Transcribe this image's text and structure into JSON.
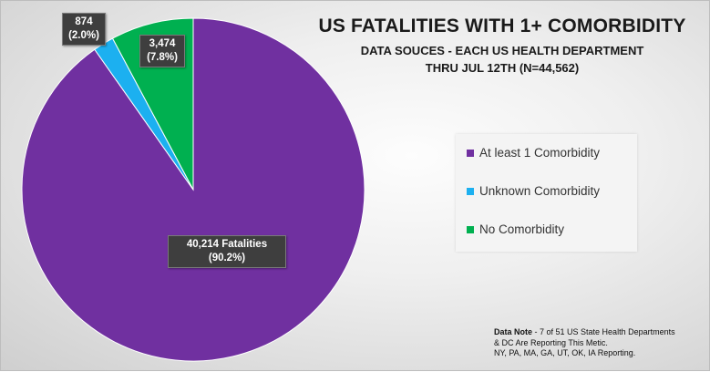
{
  "chart_data": {
    "type": "pie",
    "title": "US FATALITIES WITH 1+ COMORBIDITY",
    "subtitle_line1": "DATA SOUCES - EACH US HEALTH DEPARTMENT",
    "subtitle_line2": "THRU JUL 12TH (N=44,562)",
    "slices": [
      {
        "name": "At least 1 Comorbidity",
        "value": 40214,
        "percent": 90.2,
        "color": "#7030a0",
        "label_line1": "40,214 Fatalities",
        "label_line2": "(90.2%)"
      },
      {
        "name": "Unknown Comorbidity",
        "value": 874,
        "percent": 2.0,
        "color": "#1cb0f0",
        "label_line1": "874",
        "label_line2": "(2.0%)"
      },
      {
        "name": "No Comorbidity",
        "value": 3474,
        "percent": 7.8,
        "color": "#00b050",
        "label_line1": "3,474",
        "label_line2": "(7.8%)"
      }
    ],
    "legend_position": "right"
  },
  "note": {
    "label": "Data Note",
    "line1": " - 7 of 51 US State Health Departments",
    "line2": "& DC Are Reporting This Metic.",
    "line3": "NY, PA, MA, GA, UT, OK, IA Reporting."
  }
}
